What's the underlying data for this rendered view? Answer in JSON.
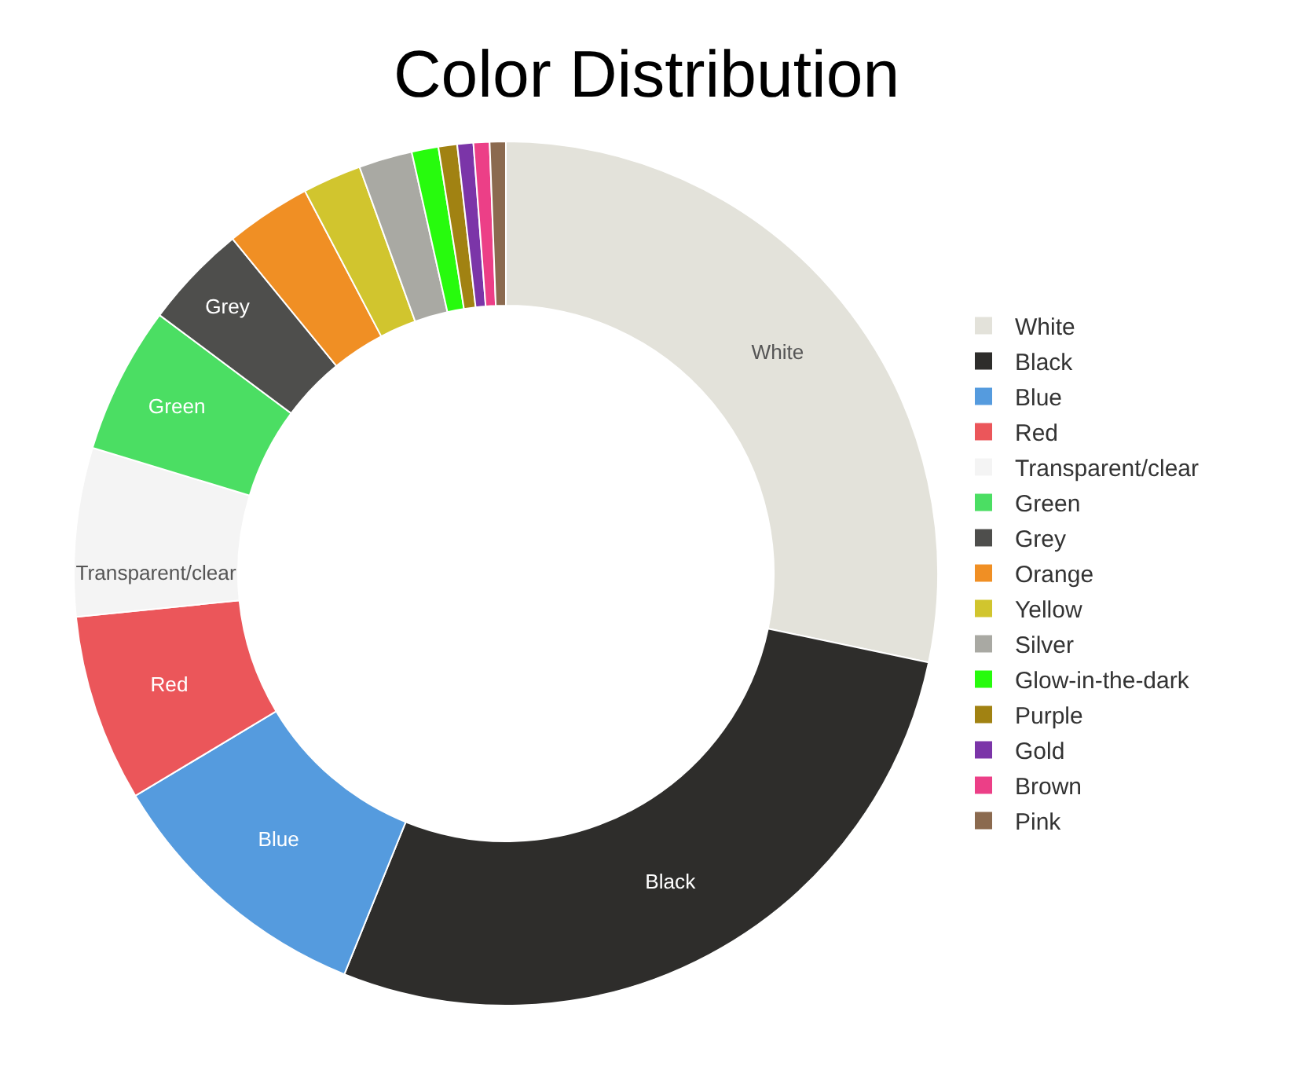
{
  "chart_data": {
    "type": "donut",
    "title": "Color Distribution",
    "categories": [
      "White",
      "Black",
      "Blue",
      "Red",
      "Transparent/clear",
      "Green",
      "Grey",
      "Orange",
      "Yellow",
      "Silver",
      "Glow-in-the-dark",
      "Purple",
      "Gold",
      "Brown",
      "Pink"
    ],
    "values": [
      28.3,
      27.8,
      10.3,
      7.0,
      6.3,
      5.5,
      3.9,
      3.2,
      2.2,
      2.0,
      1.0,
      0.7,
      0.6,
      0.6,
      0.6
    ],
    "colors": [
      "#e3e2da",
      "#2e2d2b",
      "#559bde",
      "#eb565a",
      "#f4f4f4",
      "#4bde63",
      "#4e4e4c",
      "#f08f24",
      "#d1c52e",
      "#a9a9a3",
      "#27fb0d",
      "#a18212",
      "#7b35a8",
      "#ec3f87",
      "#8b6a4f"
    ],
    "legend": "right"
  }
}
